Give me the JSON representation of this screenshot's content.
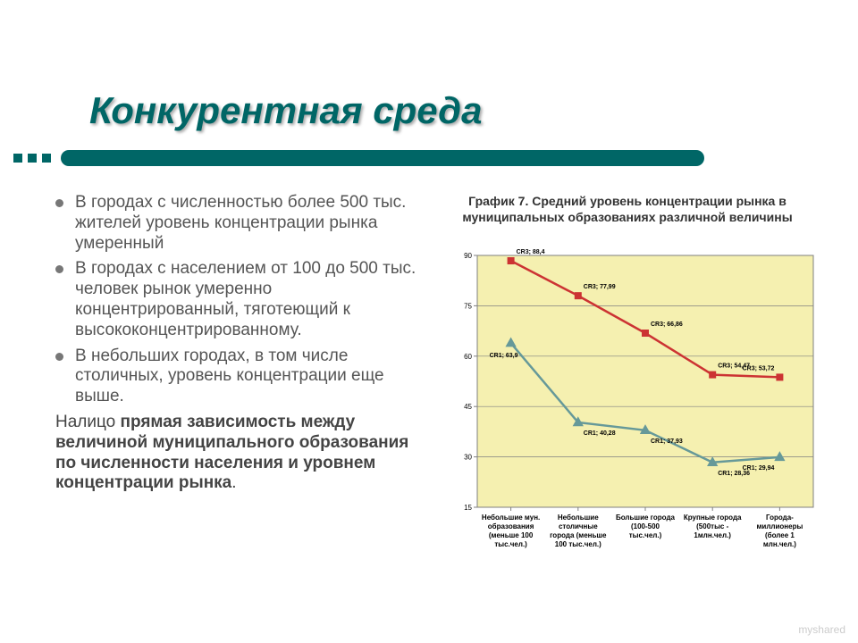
{
  "title": "Конкурентная среда",
  "bullets": [
    "В  городах с численностью более 500 тыс. жителей уровень концентрации рынка умеренный",
    "В городах с населением от 100 до 500 тыс. человек рынок умеренно концентрированный, тяготеющий к высококонцентрированному.",
    "В небольших городах, в том числе столичных, уровень концентрации еще выше."
  ],
  "summary_prefix": "Налицо ",
  "summary_bold": "прямая зависимость между величиной муниципального образования по численности населения и уровнем концентрации рынка",
  "summary_suffix": ".",
  "chart": {
    "title": "График 7. Средний уровень концентрации рынка в муниципальных образованиях различной величины",
    "type": "line",
    "background_color": "#f5f0b0",
    "plot_border_color": "#808080",
    "grid_color": "#808080",
    "text_color": "#000000",
    "label_fontsize": 7,
    "tick_fontsize": 8,
    "ylim": [
      15,
      90
    ],
    "ytick_step": 15,
    "categories_lines": [
      [
        "Небольшие мун.",
        "образования",
        "(меньше 100",
        "тыс.чел.)"
      ],
      [
        "Небольшие",
        "столичные",
        "города (меньше",
        "100 тыс.чел.)"
      ],
      [
        "Большие города",
        "(100-500",
        "тыс.чел.)"
      ],
      [
        "Крупные города",
        "(500тыс -",
        "1млн.чел.)"
      ],
      [
        "Города-",
        "миллионеры",
        "(более 1",
        "млн.чел.)"
      ]
    ],
    "series": [
      {
        "name": "CR3",
        "color": "#cc3333",
        "marker": "square",
        "marker_fill": "#cc3333",
        "marker_size": 7,
        "line_width": 2.5,
        "values": [
          88.4,
          77.99,
          66.86,
          54.47,
          53.72
        ],
        "labels": [
          "CR3; 88,4",
          "CR3; 77,99",
          "CR3; 66,86",
          "CR3; 54,47",
          "CR3; 53,72"
        ]
      },
      {
        "name": "CR1",
        "color": "#669999",
        "marker": "triangle",
        "marker_fill": "#669999",
        "marker_size": 9,
        "line_width": 2.5,
        "values": [
          63.9,
          40.28,
          37.93,
          28.36,
          29.94
        ],
        "labels": [
          "CR1; 63,9",
          "CR1; 40,28",
          "CR1; 37,93",
          "CR1; 28,36",
          "CR1; 29,94"
        ]
      }
    ]
  },
  "watermark": "myshared"
}
